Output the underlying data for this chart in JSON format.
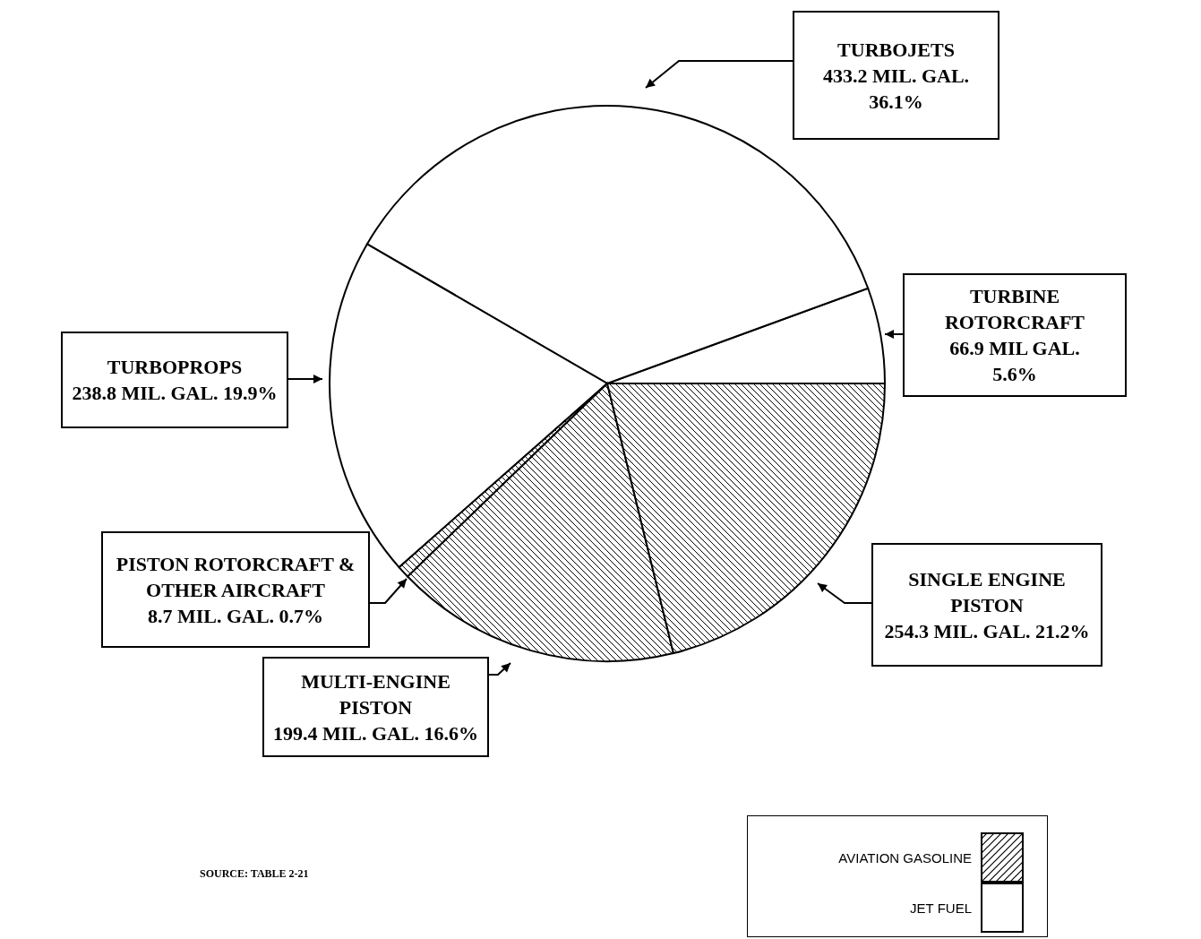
{
  "chart_data": {
    "type": "pie",
    "categories": [
      "TURBINE ROTORCRAFT",
      "TURBOJETS",
      "TURBOPROPS",
      "PISTON ROTORCRAFT & OTHER AIRCRAFT",
      "MULTI-ENGINE PISTON",
      "SINGLE ENGINE PISTON"
    ],
    "values": [
      66.9,
      433.2,
      238.8,
      8.7,
      199.4,
      254.3
    ],
    "colors": [
      "#ffffff",
      "#ffffff",
      "#ffffff",
      "#000000",
      "#000000",
      "#000000"
    ],
    "value_labels": [
      "66.9 MIL GAL. 5.6%",
      "433.2 MIL. GAL. 36.1%",
      "238.8 MIL. GAL. 19.9%",
      "8.7 MIL. GAL. 0.7%",
      "199.4 MIL. GAL. 16.6%",
      "254.3 MIL. GAL. 21.2%"
    ],
    "annotations": [
      "SOURCE: TABLE 2-21",
      "AVIATION GASOLINE",
      "JET FUEL"
    ]
  }
}
